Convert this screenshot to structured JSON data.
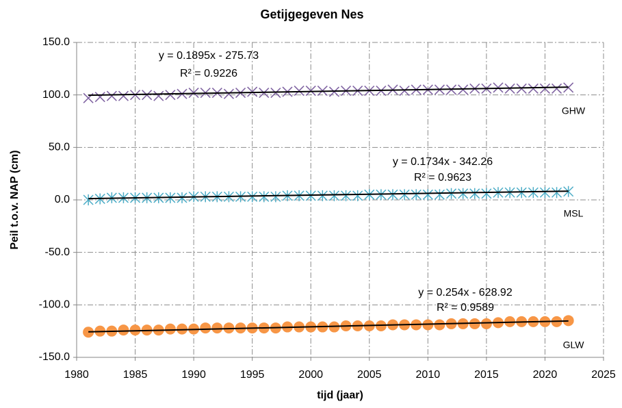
{
  "chart_data": {
    "type": "scatter",
    "title": "Getijgegeven Nes",
    "xlabel": "tijd (jaar)",
    "ylabel": "Peil t.o.v. NAP (cm)",
    "xlim": [
      1980,
      2025
    ],
    "xticks": [
      1980,
      1985,
      1990,
      1995,
      2000,
      2005,
      2010,
      2015,
      2020,
      2025
    ],
    "ylim": [
      -150,
      150
    ],
    "yticks": [
      {
        "value": -150,
        "label": "-150.0"
      },
      {
        "value": -100,
        "label": "-100.0"
      },
      {
        "value": -50,
        "label": "-50.0"
      },
      {
        "value": 0,
        "label": "0.0"
      },
      {
        "value": 50,
        "label": "50.0"
      },
      {
        "value": 100,
        "label": "100.0"
      },
      {
        "value": 150,
        "label": "150.0"
      }
    ],
    "grid": true,
    "x": [
      1981,
      1982,
      1983,
      1984,
      1985,
      1986,
      1987,
      1988,
      1989,
      1990,
      1991,
      1992,
      1993,
      1994,
      1995,
      1996,
      1997,
      1998,
      1999,
      2000,
      2001,
      2002,
      2003,
      2004,
      2005,
      2006,
      2007,
      2008,
      2009,
      2010,
      2011,
      2012,
      2013,
      2014,
      2015,
      2016,
      2017,
      2018,
      2019,
      2020,
      2021,
      2022
    ],
    "series": [
      {
        "name": "GHW",
        "color": "#8064a2",
        "marker": "x",
        "values": [
          97,
          98,
          99,
          99,
          100,
          100,
          99,
          100,
          101,
          102,
          102,
          102,
          101,
          102,
          103,
          102,
          102,
          103,
          104,
          104,
          104,
          103,
          104,
          104,
          104,
          104,
          105,
          104,
          105,
          105,
          105,
          105,
          105,
          106,
          106,
          107,
          106,
          106,
          106,
          106,
          106,
          107
        ],
        "trendline": {
          "slope": 0.1895,
          "intercept": -275.73,
          "equation": "y = 0.1895x - 275.73",
          "r2": "R² = 0.9226"
        }
      },
      {
        "name": "MSL",
        "color": "#4bacc6",
        "marker": "star",
        "values": [
          0,
          1,
          2,
          2,
          2,
          2,
          2,
          2,
          2,
          3,
          3,
          3,
          3,
          3,
          3,
          3,
          3,
          4,
          4,
          4,
          4,
          4,
          4,
          4,
          5,
          5,
          5,
          5,
          5,
          5,
          5,
          6,
          6,
          6,
          6,
          7,
          7,
          7,
          7,
          7,
          7,
          8
        ],
        "trendline": {
          "slope": 0.1734,
          "intercept": -342.26,
          "equation": "y = 0.1734x - 342.26",
          "r2": "R² = 0.9623"
        }
      },
      {
        "name": "GLW",
        "color": "#f79646",
        "marker": "circle",
        "values": [
          -126,
          -125,
          -125,
          -124,
          -124,
          -124,
          -124,
          -123,
          -123,
          -123,
          -122,
          -122,
          -122,
          -122,
          -122,
          -122,
          -122,
          -121,
          -121,
          -121,
          -121,
          -121,
          -120,
          -120,
          -120,
          -120,
          -119,
          -119,
          -119,
          -119,
          -119,
          -118,
          -118,
          -118,
          -118,
          -117,
          -116,
          -116,
          -116,
          -116,
          -116,
          -115
        ],
        "trendline": {
          "slope": 0.254,
          "intercept": -628.92,
          "equation": "y = 0.254x - 628.92",
          "r2": "R² = 0.9589"
        }
      }
    ]
  }
}
